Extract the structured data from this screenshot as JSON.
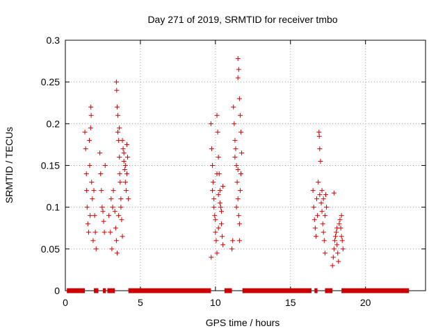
{
  "chart_data": {
    "type": "scatter",
    "title": "Day 271 of 2019, SRMTID for receiver tmbo",
    "xlabel": "GPS time / hours",
    "ylabel": "SRMTID / TECUs",
    "xlim": [
      0,
      24
    ],
    "ylim": [
      0,
      0.3
    ],
    "xticks": [
      0,
      5,
      10,
      15,
      20
    ],
    "yticks": [
      0,
      0.05,
      0.1,
      0.15,
      0.2,
      0.25,
      0.3
    ],
    "grid": true,
    "marker": "+",
    "color": "#cc0000",
    "series": [
      {
        "name": "SRMTID",
        "points": [
          [
            1.3,
            0.19
          ],
          [
            1.35,
            0.17
          ],
          [
            1.4,
            0.14
          ],
          [
            1.42,
            0.12
          ],
          [
            1.45,
            0.1
          ],
          [
            1.5,
            0.08
          ],
          [
            1.55,
            0.07
          ],
          [
            1.6,
            0.18
          ],
          [
            1.62,
            0.15
          ],
          [
            1.65,
            0.09
          ],
          [
            1.7,
            0.22
          ],
          [
            1.72,
            0.21
          ],
          [
            1.75,
            0.13
          ],
          [
            1.8,
            0.11
          ],
          [
            1.85,
            0.06
          ],
          [
            1.9,
            0.12
          ],
          [
            1.95,
            0.09
          ],
          [
            2.0,
            0.07
          ],
          [
            2.05,
            0.05
          ],
          [
            1.68,
            0.195
          ],
          [
            2.3,
            0.165
          ],
          [
            2.35,
            0.14
          ],
          [
            2.4,
            0.12
          ],
          [
            2.45,
            0.1
          ],
          [
            2.5,
            0.095
          ],
          [
            2.55,
            0.083
          ],
          [
            2.6,
            0.07
          ],
          [
            2.65,
            0.15
          ],
          [
            2.9,
            0.09
          ],
          [
            3.0,
            0.07
          ],
          [
            3.05,
            0.11
          ],
          [
            3.1,
            0.05
          ],
          [
            3.15,
            0.1
          ],
          [
            3.2,
            0.12
          ],
          [
            3.3,
            0.095
          ],
          [
            3.35,
            0.075
          ],
          [
            3.4,
            0.06
          ],
          [
            3.4,
            0.25
          ],
          [
            3.42,
            0.24
          ],
          [
            3.45,
            0.22
          ],
          [
            3.5,
            0.19
          ],
          [
            3.55,
            0.18
          ],
          [
            3.6,
            0.16
          ],
          [
            3.62,
            0.14
          ],
          [
            3.65,
            0.13
          ],
          [
            3.7,
            0.11
          ],
          [
            3.75,
            0.085
          ],
          [
            3.8,
            0.065
          ],
          [
            3.45,
            0.045
          ],
          [
            3.85,
            0.17
          ],
          [
            3.9,
            0.155
          ],
          [
            3.95,
            0.145
          ],
          [
            4.0,
            0.13
          ],
          [
            4.05,
            0.12
          ],
          [
            4.1,
            0.175
          ],
          [
            4.15,
            0.16
          ],
          [
            4.2,
            0.11
          ],
          [
            3.5,
            0.21
          ],
          [
            3.6,
            0.195
          ],
          [
            3.8,
            0.18
          ],
          [
            3.9,
            0.165
          ],
          [
            4.0,
            0.15
          ],
          [
            4.1,
            0.14
          ],
          [
            3.7,
            0.1
          ],
          [
            3.55,
            0.09
          ],
          [
            9.7,
            0.2
          ],
          [
            9.75,
            0.17
          ],
          [
            9.8,
            0.15
          ],
          [
            9.85,
            0.13
          ],
          [
            9.9,
            0.11
          ],
          [
            9.95,
            0.09
          ],
          [
            10.0,
            0.07
          ],
          [
            10.05,
            0.06
          ],
          [
            10.1,
            0.045
          ],
          [
            9.72,
            0.04
          ],
          [
            10.1,
            0.21
          ],
          [
            10.15,
            0.19
          ],
          [
            10.2,
            0.16
          ],
          [
            10.25,
            0.14
          ],
          [
            10.3,
            0.12
          ],
          [
            10.35,
            0.1
          ],
          [
            10.4,
            0.08
          ],
          [
            10.45,
            0.065
          ],
          [
            10.5,
            0.055
          ],
          [
            10.2,
            0.115
          ],
          [
            10.3,
            0.105
          ],
          [
            10.4,
            0.095
          ],
          [
            10.5,
            0.125
          ],
          [
            9.8,
            0.12
          ],
          [
            9.9,
            0.1
          ],
          [
            10.0,
            0.085
          ],
          [
            10.1,
            0.14
          ],
          [
            10.2,
            0.075
          ],
          [
            11.1,
            0.05
          ],
          [
            11.15,
            0.06
          ],
          [
            11.2,
            0.22
          ],
          [
            11.25,
            0.2
          ],
          [
            11.3,
            0.18
          ],
          [
            11.35,
            0.17
          ],
          [
            11.4,
            0.15
          ],
          [
            11.45,
            0.13
          ],
          [
            11.5,
            0.11
          ],
          [
            11.55,
            0.09
          ],
          [
            11.6,
            0.08
          ],
          [
            11.65,
            0.12
          ],
          [
            11.7,
            0.14
          ],
          [
            11.5,
            0.278
          ],
          [
            11.55,
            0.265
          ],
          [
            11.5,
            0.255
          ],
          [
            11.6,
            0.23
          ],
          [
            11.65,
            0.21
          ],
          [
            11.7,
            0.19
          ],
          [
            11.75,
            0.165
          ],
          [
            11.3,
            0.16
          ],
          [
            11.4,
            0.1
          ],
          [
            11.6,
            0.06
          ],
          [
            11.5,
            0.145
          ],
          [
            16.5,
            0.12
          ],
          [
            16.55,
            0.1
          ],
          [
            16.6,
            0.085
          ],
          [
            16.65,
            0.075
          ],
          [
            16.7,
            0.065
          ],
          [
            16.75,
            0.11
          ],
          [
            16.8,
            0.09
          ],
          [
            16.85,
            0.13
          ],
          [
            16.9,
            0.19
          ],
          [
            16.92,
            0.185
          ],
          [
            16.95,
            0.17
          ],
          [
            17.0,
            0.155
          ],
          [
            16.95,
            0.115
          ],
          [
            17.05,
            0.105
          ],
          [
            17.1,
            0.095
          ],
          [
            17.15,
            0.08
          ],
          [
            17.2,
            0.07
          ],
          [
            17.25,
            0.06
          ],
          [
            17.3,
            0.045
          ],
          [
            17.35,
            0.115
          ],
          [
            17.4,
            0.1
          ],
          [
            17.1,
            0.12
          ],
          [
            17.2,
            0.11
          ],
          [
            17.3,
            0.09
          ],
          [
            17.8,
            0.03
          ],
          [
            17.85,
            0.04
          ],
          [
            17.9,
            0.05
          ],
          [
            17.95,
            0.06
          ],
          [
            18.0,
            0.065
          ],
          [
            18.05,
            0.07
          ],
          [
            18.1,
            0.055
          ],
          [
            18.15,
            0.045
          ],
          [
            18.2,
            0.035
          ],
          [
            18.25,
            0.08
          ],
          [
            18.3,
            0.085
          ],
          [
            18.35,
            0.075
          ],
          [
            18.4,
            0.065
          ],
          [
            18.45,
            0.06
          ],
          [
            18.5,
            0.05
          ],
          [
            17.9,
            0.117
          ],
          [
            18.1,
            0.075
          ],
          [
            18.4,
            0.09
          ]
        ]
      },
      {
        "name": "zero-level",
        "y": 0,
        "x_segments": [
          [
            0.1,
            1.3
          ],
          [
            1.9,
            2.2
          ],
          [
            2.5,
            2.7
          ],
          [
            2.8,
            3.3
          ],
          [
            4.2,
            9.7
          ],
          [
            10.6,
            11.1
          ],
          [
            11.8,
            16.4
          ],
          [
            16.6,
            16.8
          ],
          [
            17.3,
            17.8
          ],
          [
            18.4,
            22.9
          ]
        ]
      }
    ]
  }
}
